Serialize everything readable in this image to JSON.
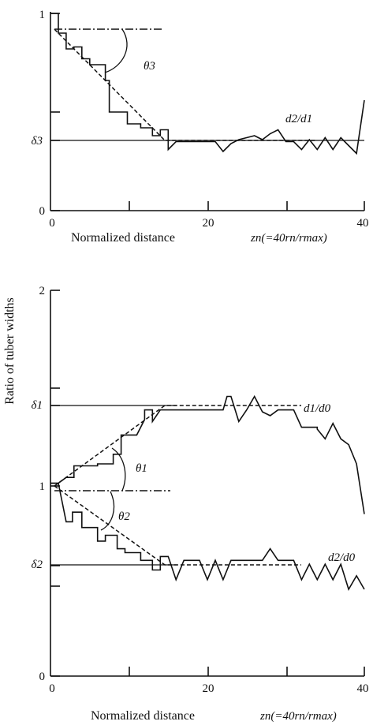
{
  "ylabel": "Ratio of tuber widths",
  "chart_data": [
    {
      "type": "line",
      "panel": "top",
      "xlabel": "Normalized distance",
      "xlabel_formula": "zn(=40rn/rmax)",
      "xlim": [
        0,
        40
      ],
      "ylim": [
        0,
        1
      ],
      "x_ticks": [
        "0",
        "20",
        "40"
      ],
      "y_ticks": [
        "0",
        "1"
      ],
      "special_y_labels": [
        {
          "text": "δ3",
          "value": 0.35
        }
      ],
      "series": [
        {
          "name": "d2/d1",
          "x": [
            0,
            1,
            1,
            2,
            2,
            3,
            3,
            4,
            4,
            5,
            5,
            7,
            7,
            7.5,
            7.5,
            9,
            9,
            9.8,
            9.8,
            11.5,
            11.5,
            13,
            13,
            14,
            14,
            15,
            15,
            16,
            17,
            18,
            19,
            20,
            21,
            22,
            23,
            24,
            25,
            26,
            27,
            28,
            29,
            30,
            31,
            32,
            33,
            34,
            35,
            36,
            37,
            38,
            39,
            40
          ],
          "y": [
            1,
            1,
            0.9,
            0.9,
            0.82,
            0.82,
            0.83,
            0.83,
            0.77,
            0.77,
            0.74,
            0.74,
            0.66,
            0.66,
            0.5,
            0.5,
            0.5,
            0.5,
            0.44,
            0.44,
            0.42,
            0.42,
            0.38,
            0.38,
            0.41,
            0.41,
            0.31,
            0.35,
            0.35,
            0.35,
            0.35,
            0.35,
            0.35,
            0.3,
            0.34,
            0.36,
            0.37,
            0.38,
            0.36,
            0.39,
            0.41,
            0.35,
            0.35,
            0.31,
            0.36,
            0.31,
            0.37,
            0.31,
            0.37,
            0.33,
            0.29,
            0.56
          ]
        }
      ],
      "reference_lines": [
        {
          "kind": "dash-dot",
          "y": 0.92,
          "x": [
            0.5,
            12.5
          ]
        },
        {
          "kind": "solid",
          "y": 0.35,
          "x": [
            0,
            40
          ]
        },
        {
          "kind": "dashed",
          "points": [
            [
              0.5,
              0.92
            ],
            [
              14.5,
              0.35
            ],
            [
              34,
              0.35
            ]
          ]
        }
      ],
      "angle_label": "θ3"
    },
    {
      "type": "line",
      "panel": "bottom",
      "xlabel": "Normalized distance",
      "xlabel_formula": "zn(=40rn/rmax)",
      "xlim": [
        0,
        40
      ],
      "ylim": [
        0,
        2
      ],
      "x_ticks": [
        "0",
        "20",
        "40"
      ],
      "y_ticks": [
        "0",
        "1",
        "2"
      ],
      "special_y_labels": [
        {
          "text": "δ1",
          "value": 1.4
        },
        {
          "text": "δ2",
          "value": 0.6
        }
      ],
      "series": [
        {
          "name": "d1/d0",
          "x": [
            0,
            1,
            2,
            3,
            3,
            6,
            6,
            8,
            8,
            9,
            9,
            11,
            12,
            12,
            13,
            13,
            14,
            15,
            15,
            18,
            19,
            20,
            21,
            22,
            22.5,
            23,
            24,
            25,
            26,
            27,
            28,
            29,
            30,
            31,
            32,
            34,
            34,
            35,
            36,
            37,
            38,
            39,
            40
          ],
          "y": [
            1.0,
            1.0,
            1.03,
            1.03,
            1.09,
            1.09,
            1.1,
            1.1,
            1.15,
            1.15,
            1.25,
            1.25,
            1.33,
            1.38,
            1.38,
            1.32,
            1.38,
            1.38,
            1.38,
            1.38,
            1.38,
            1.38,
            1.38,
            1.38,
            1.45,
            1.45,
            1.32,
            1.38,
            1.45,
            1.37,
            1.35,
            1.38,
            1.38,
            1.38,
            1.29,
            1.29,
            1.28,
            1.23,
            1.31,
            1.23,
            1.2,
            1.1,
            0.84
          ]
        },
        {
          "name": "d2/d0",
          "x": [
            0,
            1,
            2,
            2.8,
            2.8,
            4,
            4,
            6,
            6,
            7,
            7,
            8.5,
            8.5,
            9.5,
            9.5,
            11.5,
            11.5,
            13,
            13,
            14,
            14,
            15,
            16,
            17,
            18,
            19,
            20,
            21,
            22,
            23,
            24,
            25,
            26,
            27,
            28,
            29,
            30,
            31,
            32,
            33,
            34,
            35,
            36,
            37,
            38,
            39,
            40
          ],
          "y": [
            1.0,
            1.0,
            0.8,
            0.8,
            0.85,
            0.85,
            0.77,
            0.77,
            0.7,
            0.7,
            0.73,
            0.73,
            0.66,
            0.66,
            0.64,
            0.64,
            0.6,
            0.6,
            0.55,
            0.55,
            0.62,
            0.62,
            0.5,
            0.6,
            0.6,
            0.6,
            0.5,
            0.6,
            0.5,
            0.6,
            0.6,
            0.6,
            0.6,
            0.6,
            0.66,
            0.6,
            0.6,
            0.6,
            0.5,
            0.58,
            0.5,
            0.58,
            0.5,
            0.58,
            0.45,
            0.52,
            0.45
          ]
        }
      ],
      "reference_lines": [
        {
          "kind": "dash-dot",
          "y": 0.98,
          "x": [
            0.5,
            15
          ]
        },
        {
          "kind": "solid",
          "y": 1.4,
          "x": [
            0,
            16
          ]
        },
        {
          "kind": "solid",
          "y": 0.6,
          "x": [
            0,
            16
          ]
        },
        {
          "kind": "dashed",
          "points": [
            [
              0.5,
              1.0
            ],
            [
              14.5,
              1.4
            ],
            [
              32,
              1.4
            ]
          ]
        },
        {
          "kind": "dashed",
          "points": [
            [
              0.5,
              1.0
            ],
            [
              14.5,
              0.6
            ],
            [
              32,
              0.6
            ]
          ]
        }
      ],
      "angle_labels": [
        "θ1",
        "θ2"
      ]
    }
  ]
}
